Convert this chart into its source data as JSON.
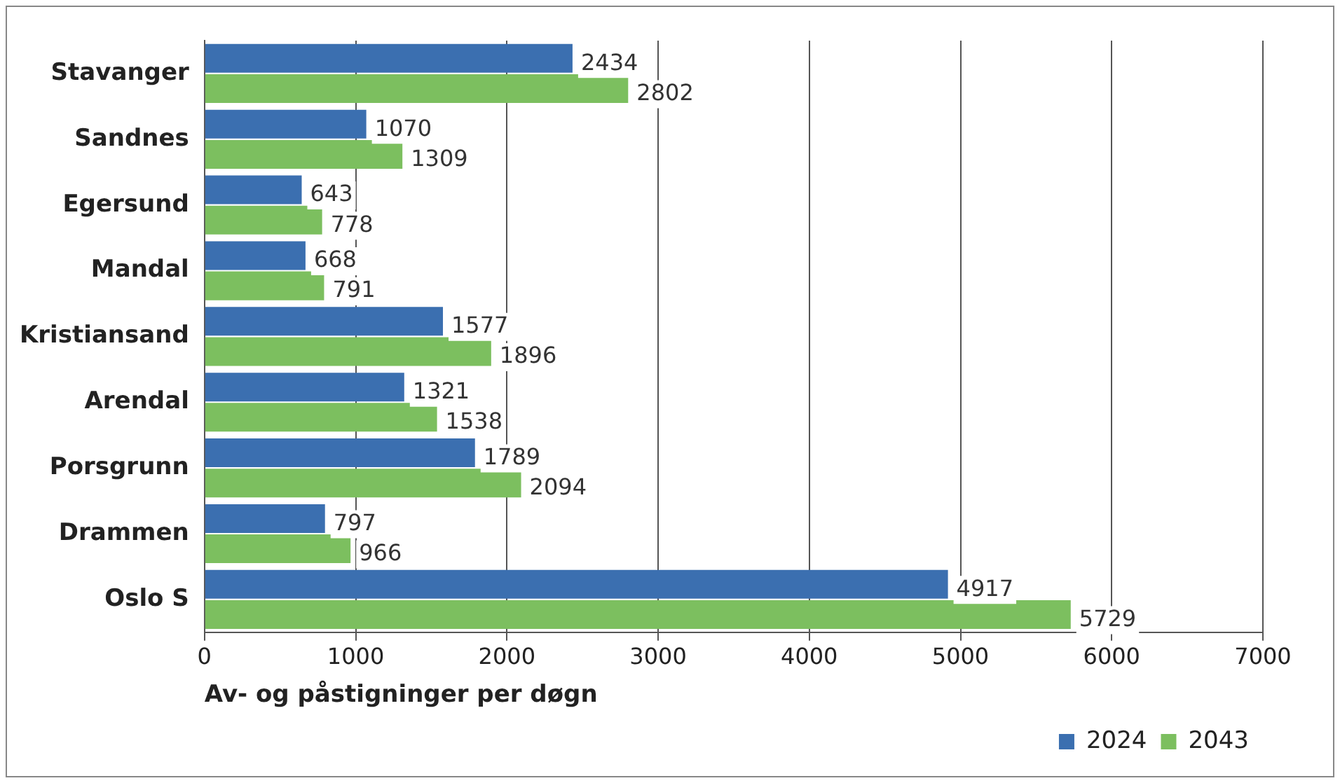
{
  "chart_data": {
    "type": "bar",
    "orientation": "horizontal",
    "xlabel": "Av- og påstigninger per døgn",
    "categories": [
      "Stavanger",
      "Sandnes",
      "Egersund",
      "Mandal",
      "Kristiansand",
      "Arendal",
      "Porsgrunn",
      "Drammen",
      "Oslo S"
    ],
    "series": [
      {
        "name": "2024",
        "color": "#3b6fb0",
        "values": [
          2434,
          1070,
          643,
          668,
          1577,
          1321,
          1789,
          797,
          4917
        ]
      },
      {
        "name": "2043",
        "color": "#7cbf5f",
        "values": [
          2802,
          1309,
          778,
          791,
          1896,
          1538,
          2094,
          966,
          5729
        ]
      }
    ],
    "xlim": [
      0,
      7000
    ],
    "xticks": [
      0,
      1000,
      2000,
      3000,
      4000,
      5000,
      6000,
      7000
    ],
    "grid": "x",
    "legend": "bottom right",
    "data_labels": true
  }
}
